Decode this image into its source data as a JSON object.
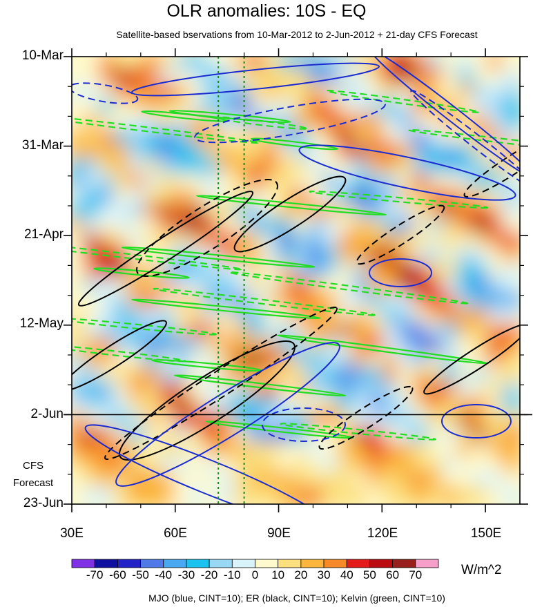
{
  "chart_data": {
    "type": "heatmap",
    "title": "OLR anomalies: 10S - EQ",
    "subtitle": "Satellite-based bservations from 10-Mar-2012 to 2-Jun-2012 + 21-day CFS Forecast",
    "x_ticks": [
      "30E",
      "60E",
      "90E",
      "120E",
      "150E"
    ],
    "x_tick_values": [
      30,
      60,
      90,
      120,
      150
    ],
    "xlim": [
      30,
      160
    ],
    "y_ticks": [
      "10-Mar",
      "31-Mar",
      "21-Apr",
      "12-May",
      "2-Jun",
      "23-Jun"
    ],
    "y_tick_values": [
      "2012-03-10",
      "2012-03-31",
      "2012-04-21",
      "2012-05-12",
      "2012-06-02",
      "2012-06-23"
    ],
    "forecast_label_line1": "CFS",
    "forecast_label_line2": "Forecast",
    "forecast_start": "2012-06-02",
    "reference_lines_lon": [
      72.5,
      80
    ],
    "colorbar": {
      "unit": "W/m^2",
      "labels": [
        "-70",
        "-60",
        "-50",
        "-40",
        "-30",
        "-20",
        "-10",
        "0",
        "10",
        "20",
        "30",
        "40",
        "50",
        "60",
        "70"
      ],
      "colors": [
        "#7f2fe6",
        "#1010a0",
        "#2222c8",
        "#4f7ae8",
        "#4aa8f0",
        "#19c3f0",
        "#9ad6f6",
        "#d9f3fb",
        "#fefacd",
        "#fce07f",
        "#fcb63c",
        "#f78a28",
        "#e51a1a",
        "#bb0b10",
        "#98201c",
        "#f5a0c8"
      ]
    },
    "overlays": [
      {
        "name": "MJO",
        "color": "#1a2bd0",
        "contour_interval": 10
      },
      {
        "name": "ER",
        "color": "#000000",
        "contour_interval": 10
      },
      {
        "name": "Kelvin",
        "color": "#22dd22",
        "contour_interval": 10
      }
    ],
    "footnote": "MJO (blue, CINT=10); ER (black, CINT=10); Kelvin (green, CINT=10)"
  }
}
